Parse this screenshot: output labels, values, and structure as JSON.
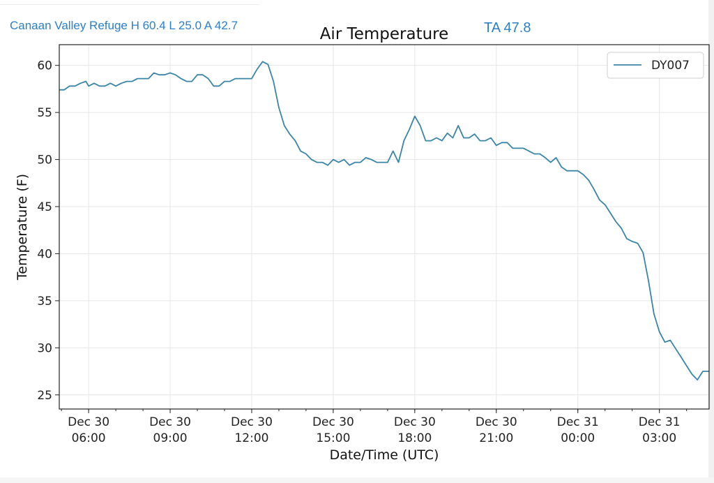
{
  "header": {
    "station_summary": "Canaan Valley Refuge H 60.4 L 25.0 A 42.7",
    "ta_label": "TA 47.8"
  },
  "chart_data": {
    "type": "line",
    "title": "Air Temperature",
    "xlabel": "Date/Time (UTC)",
    "ylabel": "Temperature (F)",
    "ylim": [
      23.5,
      62.2
    ],
    "xlim_hours": [
      4.92,
      28.83
    ],
    "yticks": [
      25,
      30,
      35,
      40,
      45,
      50,
      55,
      60
    ],
    "xticks": [
      {
        "hour": 6,
        "line1": "Dec 30",
        "line2": "06:00"
      },
      {
        "hour": 9,
        "line1": "Dec 30",
        "line2": "09:00"
      },
      {
        "hour": 12,
        "line1": "Dec 30",
        "line2": "12:00"
      },
      {
        "hour": 15,
        "line1": "Dec 30",
        "line2": "15:00"
      },
      {
        "hour": 18,
        "line1": "Dec 30",
        "line2": "18:00"
      },
      {
        "hour": 21,
        "line1": "Dec 30",
        "line2": "21:00"
      },
      {
        "hour": 24,
        "line1": "Dec 31",
        "line2": "00:00"
      },
      {
        "hour": 27,
        "line1": "Dec 31",
        "line2": "03:00"
      }
    ],
    "grid": true,
    "legend": "top-right",
    "series": [
      {
        "name": "DY007",
        "color": "#3a84a6",
        "points": [
          [
            4.92,
            57.4
          ],
          [
            5.1,
            57.4
          ],
          [
            5.3,
            57.8
          ],
          [
            5.5,
            57.8
          ],
          [
            5.7,
            58.1
          ],
          [
            5.9,
            58.3
          ],
          [
            6.0,
            57.8
          ],
          [
            6.2,
            58.1
          ],
          [
            6.4,
            57.8
          ],
          [
            6.6,
            57.8
          ],
          [
            6.8,
            58.1
          ],
          [
            7.0,
            57.8
          ],
          [
            7.2,
            58.1
          ],
          [
            7.4,
            58.3
          ],
          [
            7.6,
            58.3
          ],
          [
            7.8,
            58.6
          ],
          [
            8.0,
            58.6
          ],
          [
            8.2,
            58.6
          ],
          [
            8.4,
            59.2
          ],
          [
            8.6,
            59.0
          ],
          [
            8.8,
            59.0
          ],
          [
            9.0,
            59.2
          ],
          [
            9.2,
            59.0
          ],
          [
            9.4,
            58.6
          ],
          [
            9.6,
            58.3
          ],
          [
            9.8,
            58.3
          ],
          [
            10.0,
            59.0
          ],
          [
            10.2,
            59.0
          ],
          [
            10.4,
            58.6
          ],
          [
            10.6,
            57.8
          ],
          [
            10.8,
            57.8
          ],
          [
            11.0,
            58.3
          ],
          [
            11.2,
            58.3
          ],
          [
            11.4,
            58.6
          ],
          [
            11.6,
            58.6
          ],
          [
            11.8,
            58.6
          ],
          [
            12.0,
            58.6
          ],
          [
            12.2,
            59.6
          ],
          [
            12.4,
            60.4
          ],
          [
            12.6,
            60.1
          ],
          [
            12.8,
            58.3
          ],
          [
            13.0,
            55.5
          ],
          [
            13.2,
            53.6
          ],
          [
            13.4,
            52.7
          ],
          [
            13.6,
            52.0
          ],
          [
            13.8,
            50.9
          ],
          [
            14.0,
            50.6
          ],
          [
            14.2,
            50.0
          ],
          [
            14.4,
            49.7
          ],
          [
            14.6,
            49.7
          ],
          [
            14.8,
            49.4
          ],
          [
            15.0,
            50.0
          ],
          [
            15.2,
            49.7
          ],
          [
            15.4,
            50.0
          ],
          [
            15.6,
            49.4
          ],
          [
            15.8,
            49.7
          ],
          [
            16.0,
            49.7
          ],
          [
            16.2,
            50.2
          ],
          [
            16.4,
            50.0
          ],
          [
            16.6,
            49.7
          ],
          [
            16.8,
            49.7
          ],
          [
            17.0,
            49.7
          ],
          [
            17.2,
            50.9
          ],
          [
            17.4,
            49.7
          ],
          [
            17.6,
            52.0
          ],
          [
            17.8,
            53.2
          ],
          [
            18.0,
            54.6
          ],
          [
            18.2,
            53.6
          ],
          [
            18.4,
            52.0
          ],
          [
            18.6,
            52.0
          ],
          [
            18.8,
            52.3
          ],
          [
            19.0,
            52.0
          ],
          [
            19.2,
            52.8
          ],
          [
            19.4,
            52.3
          ],
          [
            19.6,
            53.6
          ],
          [
            19.8,
            52.3
          ],
          [
            20.0,
            52.3
          ],
          [
            20.2,
            52.7
          ],
          [
            20.4,
            52.0
          ],
          [
            20.6,
            52.0
          ],
          [
            20.8,
            52.3
          ],
          [
            21.0,
            51.5
          ],
          [
            21.2,
            51.8
          ],
          [
            21.4,
            51.8
          ],
          [
            21.6,
            51.2
          ],
          [
            21.8,
            51.2
          ],
          [
            22.0,
            51.2
          ],
          [
            22.2,
            50.9
          ],
          [
            22.4,
            50.6
          ],
          [
            22.6,
            50.6
          ],
          [
            22.8,
            50.2
          ],
          [
            23.0,
            49.7
          ],
          [
            23.2,
            50.2
          ],
          [
            23.4,
            49.2
          ],
          [
            23.6,
            48.8
          ],
          [
            23.8,
            48.8
          ],
          [
            24.0,
            48.8
          ],
          [
            24.2,
            48.4
          ],
          [
            24.4,
            47.8
          ],
          [
            24.6,
            46.8
          ],
          [
            24.8,
            45.7
          ],
          [
            25.0,
            45.2
          ],
          [
            25.2,
            44.3
          ],
          [
            25.4,
            43.4
          ],
          [
            25.6,
            42.7
          ],
          [
            25.8,
            41.6
          ],
          [
            26.0,
            41.3
          ],
          [
            26.2,
            41.1
          ],
          [
            26.4,
            40.1
          ],
          [
            26.6,
            37.1
          ],
          [
            26.8,
            33.6
          ],
          [
            27.0,
            31.7
          ],
          [
            27.2,
            30.6
          ],
          [
            27.4,
            30.8
          ],
          [
            27.6,
            29.9
          ],
          [
            27.8,
            29.0
          ],
          [
            28.0,
            28.1
          ],
          [
            28.2,
            27.2
          ],
          [
            28.4,
            26.6
          ],
          [
            28.6,
            27.5
          ],
          [
            28.83,
            27.5
          ]
        ]
      }
    ]
  }
}
